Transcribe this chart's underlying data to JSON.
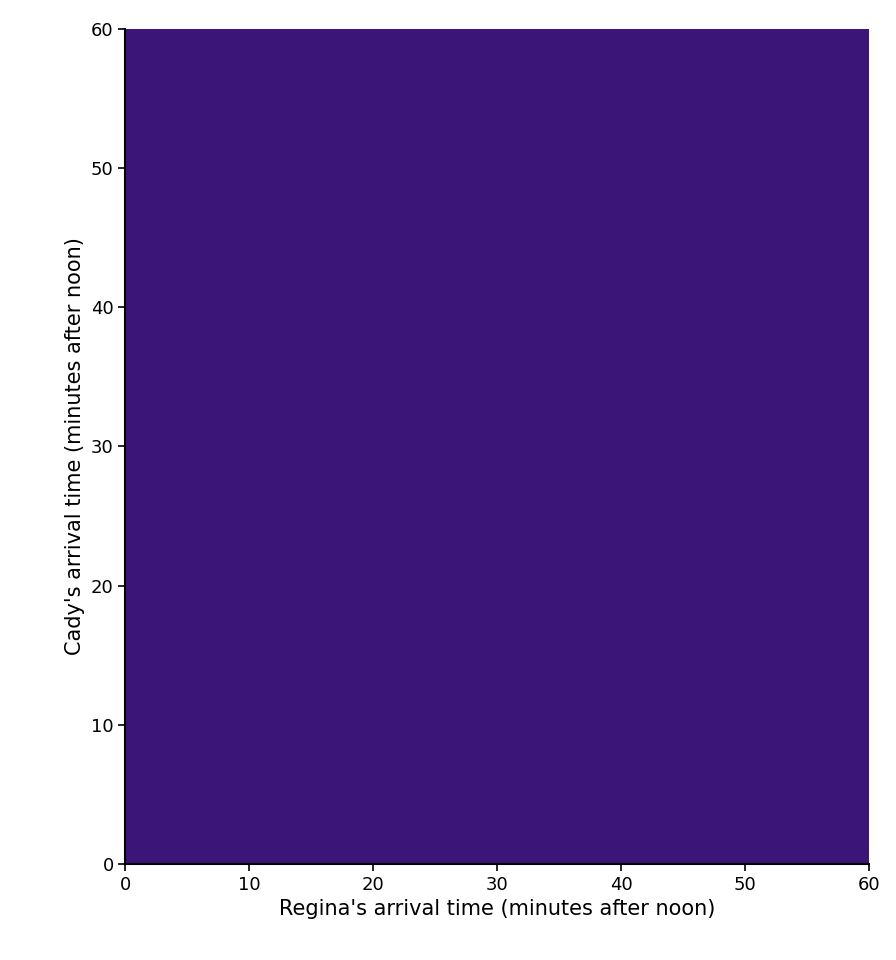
{
  "xlim": [
    0,
    60
  ],
  "ylim": [
    0,
    60
  ],
  "xlabel": "Regina's arrival time (minutes after noon)",
  "ylabel": "Cady's arrival time (minutes after noon)",
  "xticks": [
    0,
    10,
    20,
    30,
    40,
    50,
    60
  ],
  "yticks": [
    0,
    10,
    20,
    30,
    40,
    50,
    60
  ],
  "square_color": "#3b1578",
  "background_color": "#ffffff",
  "xlabel_fontsize": 15,
  "ylabel_fontsize": 15,
  "tick_fontsize": 13,
  "figure_width": 8.96,
  "figure_height": 9.6
}
